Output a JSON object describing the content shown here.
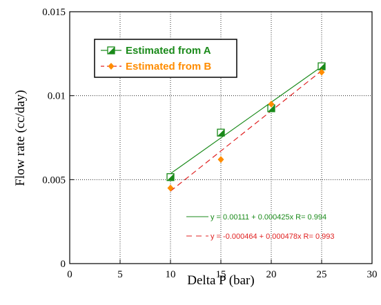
{
  "chart_data": {
    "type": "scatter",
    "xlabel": "Delta P (bar)",
    "ylabel": "Flow rate (cc/day)",
    "xlim": [
      0,
      30
    ],
    "ylim": [
      0,
      0.015
    ],
    "x_ticks": [
      0,
      5,
      10,
      15,
      20,
      25,
      30
    ],
    "y_ticks": [
      0,
      0.005,
      0.01,
      0.015
    ],
    "x_tick_labels": [
      "0",
      "5",
      "10",
      "15",
      "20",
      "25",
      "30"
    ],
    "y_tick_labels": [
      "0",
      "0.005",
      "0.01",
      "0.015"
    ],
    "grid": true,
    "legend_position": "top-left",
    "series": [
      {
        "name": "Estimated from A",
        "color": "#1a8a1a",
        "marker": "half-filled-square",
        "line_style": "solid",
        "x": [
          10,
          15,
          20,
          25
        ],
        "y": [
          0.00515,
          0.0078,
          0.00925,
          0.01175
        ],
        "fit": {
          "intercept": 0.00111,
          "slope": 0.000425,
          "label": "y = 0.00111 + 0.000425x   R= 0.994"
        }
      },
      {
        "name": "Estimated from B",
        "color": "#ff8c00",
        "fit_color": "#e02020",
        "marker": "diamond",
        "line_style": "dashed",
        "x": [
          10,
          15,
          20,
          25
        ],
        "y": [
          0.0045,
          0.0062,
          0.0095,
          0.0114
        ],
        "fit": {
          "intercept": -0.000464,
          "slope": 0.000478,
          "label": "y = -0.000464 + 0.000478x   R= 0.993"
        }
      }
    ]
  }
}
